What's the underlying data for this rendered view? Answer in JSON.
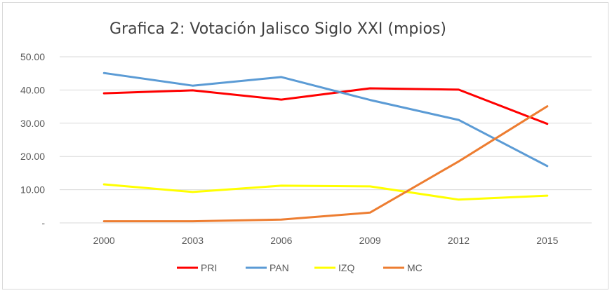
{
  "chart_data": {
    "type": "line",
    "title": "Grafica 2: Votación Jalisco Siglo XXI (mpios)",
    "xlabel": "",
    "ylabel": "",
    "x": [
      "2000",
      "2003",
      "2006",
      "2009",
      "2012",
      "2015"
    ],
    "y_ticks": [
      {
        "value": 0,
        "label": "-"
      },
      {
        "value": 10,
        "label": "10.00"
      },
      {
        "value": 20,
        "label": "20.00"
      },
      {
        "value": 30,
        "label": "30.00"
      },
      {
        "value": 40,
        "label": "40.00"
      },
      {
        "value": 50,
        "label": "50.00"
      }
    ],
    "ylim": [
      0,
      50
    ],
    "grid": true,
    "legend_position": "bottom",
    "series": [
      {
        "name": "PRI",
        "color": "#ff0000",
        "values": [
          39.0,
          39.9,
          37.1,
          40.5,
          40.1,
          29.8
        ]
      },
      {
        "name": "PAN",
        "color": "#5b9bd5",
        "values": [
          45.1,
          41.3,
          43.9,
          37.0,
          31.0,
          17.1
        ]
      },
      {
        "name": "IZQ",
        "color": "#ffff00",
        "values": [
          11.6,
          9.3,
          11.2,
          11.0,
          7.0,
          8.2
        ]
      },
      {
        "name": "MC",
        "color": "#ed7d31",
        "values": [
          0.5,
          0.5,
          1.0,
          3.1,
          18.5,
          35.1
        ]
      }
    ]
  }
}
